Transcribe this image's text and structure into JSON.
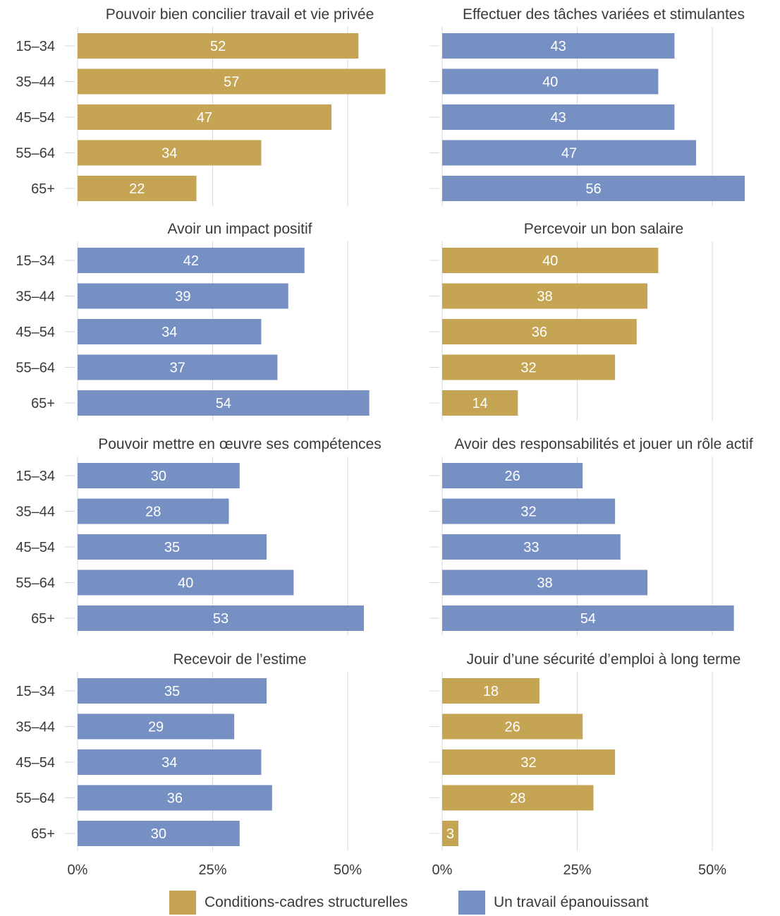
{
  "colors": {
    "structural": "#c5a454",
    "fulfilling": "#7690c4",
    "grid": "#d9d9d9",
    "text": "#3a3a3a",
    "bar_label": "#ffffff"
  },
  "legend": {
    "position": "bottom-center",
    "items": [
      {
        "label": "Conditions-cadres structurelles",
        "color": "#c5a454"
      },
      {
        "label": "Un travail épanouissant",
        "color": "#7690c4"
      }
    ]
  },
  "chart_data": [
    {
      "type": "bar",
      "orientation": "horizontal",
      "title": "Pouvoir bien concilier travail et vie privée",
      "color": "#c5a454",
      "categories": [
        "15–34",
        "35–44",
        "45–54",
        "55–64",
        "65+"
      ],
      "values": [
        52,
        57,
        47,
        34,
        22
      ],
      "xlim": [
        0,
        60
      ],
      "xticks": [
        "0%",
        "25%",
        "50%"
      ],
      "grid": true
    },
    {
      "type": "bar",
      "orientation": "horizontal",
      "title": "Effectuer des tâches variées et stimulantes",
      "color": "#7690c4",
      "categories": [
        "15–34",
        "35–44",
        "45–54",
        "55–64",
        "65+"
      ],
      "values": [
        43,
        40,
        43,
        47,
        56
      ],
      "xlim": [
        0,
        60
      ],
      "xticks": [
        "0%",
        "25%",
        "50%"
      ],
      "grid": true
    },
    {
      "type": "bar",
      "orientation": "horizontal",
      "title": "Avoir un impact positif",
      "color": "#7690c4",
      "categories": [
        "15–34",
        "35–44",
        "45–54",
        "55–64",
        "65+"
      ],
      "values": [
        42,
        39,
        34,
        37,
        54
      ],
      "xlim": [
        0,
        60
      ],
      "xticks": [
        "0%",
        "25%",
        "50%"
      ],
      "grid": true
    },
    {
      "type": "bar",
      "orientation": "horizontal",
      "title": "Percevoir un bon salaire",
      "color": "#c5a454",
      "categories": [
        "15–34",
        "35–44",
        "45–54",
        "55–64",
        "65+"
      ],
      "values": [
        40,
        38,
        36,
        32,
        14
      ],
      "xlim": [
        0,
        60
      ],
      "xticks": [
        "0%",
        "25%",
        "50%"
      ],
      "grid": true
    },
    {
      "type": "bar",
      "orientation": "horizontal",
      "title": "Pouvoir mettre en œuvre ses compétences",
      "color": "#7690c4",
      "categories": [
        "15–34",
        "35–44",
        "45–54",
        "55–64",
        "65+"
      ],
      "values": [
        30,
        28,
        35,
        40,
        53
      ],
      "xlim": [
        0,
        60
      ],
      "xticks": [
        "0%",
        "25%",
        "50%"
      ],
      "grid": true
    },
    {
      "type": "bar",
      "orientation": "horizontal",
      "title": "Avoir des responsabilités et jouer un rôle actif",
      "color": "#7690c4",
      "categories": [
        "15–34",
        "35–44",
        "45–54",
        "55–64",
        "65+"
      ],
      "values": [
        26,
        32,
        33,
        38,
        54
      ],
      "xlim": [
        0,
        60
      ],
      "xticks": [
        "0%",
        "25%",
        "50%"
      ],
      "grid": true
    },
    {
      "type": "bar",
      "orientation": "horizontal",
      "title": "Recevoir de l’estime",
      "color": "#7690c4",
      "categories": [
        "15–34",
        "35–44",
        "45–54",
        "55–64",
        "65+"
      ],
      "values": [
        35,
        29,
        34,
        36,
        30
      ],
      "xlim": [
        0,
        60
      ],
      "xticks": [
        "0%",
        "25%",
        "50%"
      ],
      "grid": true
    },
    {
      "type": "bar",
      "orientation": "horizontal",
      "title": "Jouir d’une sécurité d’emploi à long terme",
      "color": "#c5a454",
      "categories": [
        "15–34",
        "35–44",
        "45–54",
        "55–64",
        "65+"
      ],
      "values": [
        18,
        26,
        32,
        28,
        3
      ],
      "xlim": [
        0,
        60
      ],
      "xticks": [
        "0%",
        "25%",
        "50%"
      ],
      "grid": true
    }
  ]
}
